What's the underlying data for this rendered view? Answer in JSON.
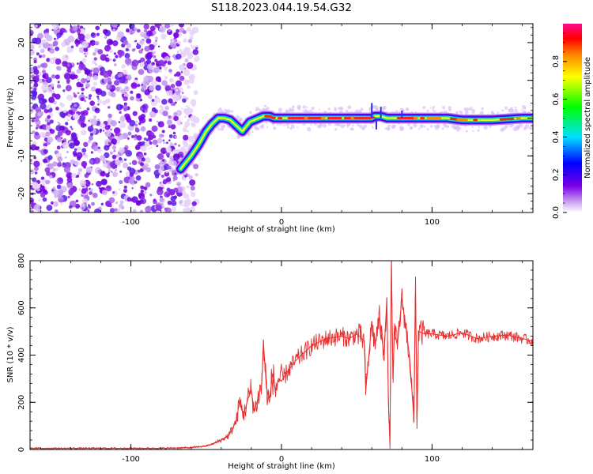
{
  "title": "S118.2023.044.19.54.G32",
  "chart_data": [
    {
      "type": "heatmap",
      "xlabel": "Height of straight line (km)",
      "ylabel": "Frequency (Hz)",
      "xlim": [
        -167,
        167
      ],
      "ylim": [
        -25,
        25
      ],
      "xticks": [
        -100,
        0,
        100
      ],
      "xtick_labels": [
        "-100",
        "0",
        "100"
      ],
      "yticks": [
        -20,
        -10,
        0,
        10,
        20
      ],
      "ytick_labels": [
        "-20",
        "-10",
        "0",
        "10",
        "20"
      ],
      "colorbar": {
        "label": "Normalized spectral amplitude",
        "range": [
          0,
          1
        ],
        "ticks": [
          0.0,
          0.2,
          0.4,
          0.6,
          0.8
        ],
        "tick_labels": [
          "0.0",
          "0.2",
          "0.4",
          "0.6",
          "0.8"
        ],
        "colormap": [
          "#ffffff",
          "#7a00e6",
          "#0000ff",
          "#00e0ff",
          "#00ff00",
          "#ffff00",
          "#ff8000",
          "#ff0000",
          "#ff00aa"
        ]
      },
      "noise_region_x": [
        -167,
        -60
      ],
      "ridge": {
        "x": [
          -67,
          -60,
          -55,
          -50,
          -46,
          -42,
          -38,
          -34,
          -30,
          -26,
          -24,
          -21,
          -18,
          -15,
          -12,
          -8,
          -5,
          0,
          20,
          40,
          60,
          62,
          66,
          70,
          90,
          100,
          110,
          120,
          140,
          160,
          167
        ],
        "y": [
          -13.5,
          -10,
          -7,
          -3.5,
          -1.5,
          0,
          0,
          -0.5,
          -2,
          -3.5,
          -2.5,
          -1,
          -0.5,
          0,
          0.5,
          0.5,
          0,
          0,
          0,
          0,
          0,
          0.5,
          0.5,
          0,
          0,
          0,
          0,
          -0.5,
          -0.5,
          0,
          0
        ]
      }
    },
    {
      "type": "line",
      "xlabel": "Height of straight line (km)",
      "ylabel": "SNR (10 * v/v)",
      "xlim": [
        -167,
        167
      ],
      "ylim": [
        0,
        800
      ],
      "xticks": [
        -100,
        0,
        100
      ],
      "xtick_labels": [
        "-100",
        "0",
        "100"
      ],
      "yticks": [
        0,
        200,
        400,
        600,
        800
      ],
      "ytick_labels": [
        "0",
        "200",
        "400",
        "600",
        "800"
      ],
      "color": "#e83030",
      "series": [
        {
          "x": [
            -167,
            -140,
            -110,
            -80,
            -60,
            -50,
            -45,
            -40,
            -35,
            -30,
            -28,
            -25,
            -22,
            -20,
            -18,
            -15,
            -13,
            -12,
            -10,
            -8,
            -6,
            -4,
            -2,
            0,
            5,
            10,
            15,
            20,
            30,
            40,
            45,
            50,
            55,
            56,
            60,
            62,
            65,
            68,
            70,
            71,
            72,
            73,
            74,
            75,
            77,
            80,
            85,
            88,
            89,
            90,
            91,
            95,
            100,
            110,
            120,
            130,
            140,
            150,
            160,
            167
          ],
          "y": [
            5,
            5,
            5,
            5,
            8,
            15,
            25,
            40,
            60,
            120,
            200,
            150,
            220,
            250,
            160,
            230,
            280,
            460,
            260,
            200,
            320,
            250,
            300,
            290,
            340,
            380,
            410,
            440,
            470,
            480,
            470,
            490,
            460,
            250,
            540,
            440,
            560,
            400,
            640,
            200,
            20,
            800,
            300,
            500,
            440,
            640,
            400,
            120,
            730,
            90,
            500,
            490,
            490,
            480,
            495,
            470,
            480,
            485,
            470,
            460
          ]
        }
      ]
    }
  ]
}
